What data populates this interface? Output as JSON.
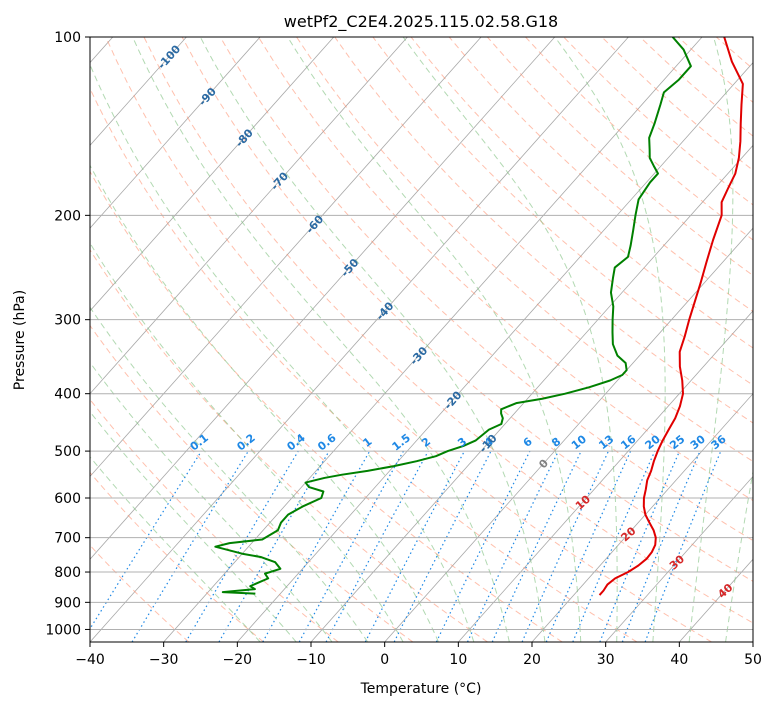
{
  "chart_data": {
    "type": "line",
    "title": "wetPf2_C2E4.2025.115.02.58.G18",
    "xlabel": "Temperature (°C)",
    "ylabel": "Pressure (hPa)",
    "xlim": [
      -40,
      50
    ],
    "ylim": [
      1050,
      100
    ],
    "y_scale": "log",
    "x_ticks": [
      -40,
      -30,
      -20,
      -10,
      0,
      10,
      20,
      30,
      40,
      50
    ],
    "y_ticks": [
      100,
      200,
      300,
      400,
      500,
      600,
      700,
      800,
      900,
      1000
    ],
    "grid": true,
    "colors": {
      "temperature": "#e00000",
      "dewpoint": "#008000",
      "isotherm": "#a8a8a8",
      "dry_adiabat": "#ff8c69",
      "moist_adiabat": "#7fbf7f",
      "mixing_ratio": "#1e88e5",
      "dry_adiabat_label": "#2b6aa3",
      "moist_adiabat_label": "#d62728",
      "zero_label": "#808080"
    },
    "series": [
      {
        "key": "temperature",
        "points": [
          [
            23.5,
            875
          ],
          [
            23.5,
            860
          ],
          [
            23.3,
            840
          ],
          [
            23.6,
            820
          ],
          [
            24.6,
            800
          ],
          [
            25.2,
            780
          ],
          [
            25.5,
            760
          ],
          [
            25.4,
            740
          ],
          [
            25.0,
            720
          ],
          [
            24.2,
            700
          ],
          [
            23.0,
            680
          ],
          [
            21.5,
            660
          ],
          [
            20.0,
            640
          ],
          [
            18.8,
            620
          ],
          [
            17.8,
            600
          ],
          [
            17.0,
            580
          ],
          [
            16.1,
            560
          ],
          [
            15.5,
            540
          ],
          [
            14.7,
            520
          ],
          [
            14.0,
            500
          ],
          [
            13.4,
            480
          ],
          [
            12.9,
            460
          ],
          [
            12.4,
            440
          ],
          [
            11.6,
            420
          ],
          [
            10.5,
            400
          ],
          [
            8.8,
            380
          ],
          [
            6.8,
            360
          ],
          [
            5.0,
            340
          ],
          [
            3.8,
            320
          ],
          [
            2.4,
            300
          ],
          [
            1.0,
            280
          ],
          [
            -0.5,
            260
          ],
          [
            -2.2,
            240
          ],
          [
            -4.0,
            220
          ],
          [
            -5.8,
            200
          ],
          [
            -7.4,
            190
          ],
          [
            -8.2,
            180
          ],
          [
            -9.0,
            170
          ],
          [
            -10.4,
            160
          ],
          [
            -12.2,
            150
          ],
          [
            -14.3,
            140
          ],
          [
            -16.5,
            130
          ],
          [
            -18.8,
            120
          ],
          [
            -23.0,
            110
          ],
          [
            -27.0,
            100
          ]
        ]
      },
      {
        "key": "dewpoint",
        "points": [
          [
            -23.4,
            870
          ],
          [
            -28.0,
            865
          ],
          [
            -24.0,
            855
          ],
          [
            -25.0,
            845
          ],
          [
            -23.5,
            820
          ],
          [
            -24.5,
            805
          ],
          [
            -23.0,
            790
          ],
          [
            -24.5,
            770
          ],
          [
            -27.0,
            755
          ],
          [
            -30.0,
            745
          ],
          [
            -34.5,
            725
          ],
          [
            -33.0,
            715
          ],
          [
            -29.0,
            705
          ],
          [
            -28.0,
            680
          ],
          [
            -28.5,
            660
          ],
          [
            -28.5,
            640
          ],
          [
            -27.5,
            620
          ],
          [
            -26.0,
            600
          ],
          [
            -26.5,
            585
          ],
          [
            -29.0,
            575
          ],
          [
            -30.0,
            565
          ],
          [
            -28.0,
            555
          ],
          [
            -26.0,
            548
          ],
          [
            -23.0,
            540
          ],
          [
            -20.0,
            530
          ],
          [
            -17.5,
            520
          ],
          [
            -15.5,
            510
          ],
          [
            -14.5,
            500
          ],
          [
            -13.0,
            490
          ],
          [
            -12.0,
            480
          ],
          [
            -11.5,
            460
          ],
          [
            -10.5,
            450
          ],
          [
            -11.0,
            440
          ],
          [
            -11.8,
            432
          ],
          [
            -12.3,
            425
          ],
          [
            -11.0,
            415
          ],
          [
            -8.0,
            408
          ],
          [
            -5.5,
            400
          ],
          [
            -3.0,
            390
          ],
          [
            -1.0,
            380
          ],
          [
            0.0,
            372
          ],
          [
            0.0,
            365
          ],
          [
            -1.0,
            355
          ],
          [
            -3.0,
            345
          ],
          [
            -5.0,
            330
          ],
          [
            -6.5,
            315
          ],
          [
            -8.0,
            300
          ],
          [
            -9.5,
            285
          ],
          [
            -11.5,
            270
          ],
          [
            -13.0,
            255
          ],
          [
            -14.0,
            245
          ],
          [
            -13.5,
            235
          ],
          [
            -14.5,
            225
          ],
          [
            -16.0,
            212
          ],
          [
            -17.5,
            200
          ],
          [
            -19.0,
            188
          ],
          [
            -19.5,
            176
          ],
          [
            -19.5,
            170
          ],
          [
            -21.0,
            165
          ],
          [
            -22.5,
            160
          ],
          [
            -23.5,
            155
          ],
          [
            -25.0,
            148
          ],
          [
            -26.0,
            140
          ],
          [
            -27.5,
            130
          ],
          [
            -28.5,
            124
          ],
          [
            -28.0,
            118
          ],
          [
            -28.0,
            112
          ],
          [
            -31.0,
            105
          ],
          [
            -34.0,
            100
          ]
        ]
      }
    ],
    "mixing_ratio_lines": [
      "0.1",
      "0.2",
      "0.4",
      "0.6",
      "1",
      "1.5",
      "2",
      "3",
      "4",
      "6",
      "8",
      "10",
      "13",
      "16",
      "20",
      "25",
      "30",
      "36"
    ],
    "mixing_ratio_values": [
      0.1,
      0.2,
      0.4,
      0.6,
      1,
      1.5,
      2,
      3,
      4,
      6,
      8,
      10,
      13,
      16,
      20,
      25,
      30,
      36
    ],
    "dry_adiabat_labels": [
      "-100",
      "-90",
      "-80",
      "-70",
      "-60",
      "-50",
      "-40",
      "-30",
      "-20",
      "-10",
      "0"
    ],
    "dry_adiabat_values": [
      -100,
      -90,
      -80,
      -70,
      -60,
      -50,
      -40,
      -30,
      -20,
      -10,
      0
    ],
    "moist_adiabat_labels": [
      "10",
      "20",
      "30",
      "40"
    ],
    "moist_adiabat_values": [
      10,
      20,
      30,
      40
    ]
  }
}
